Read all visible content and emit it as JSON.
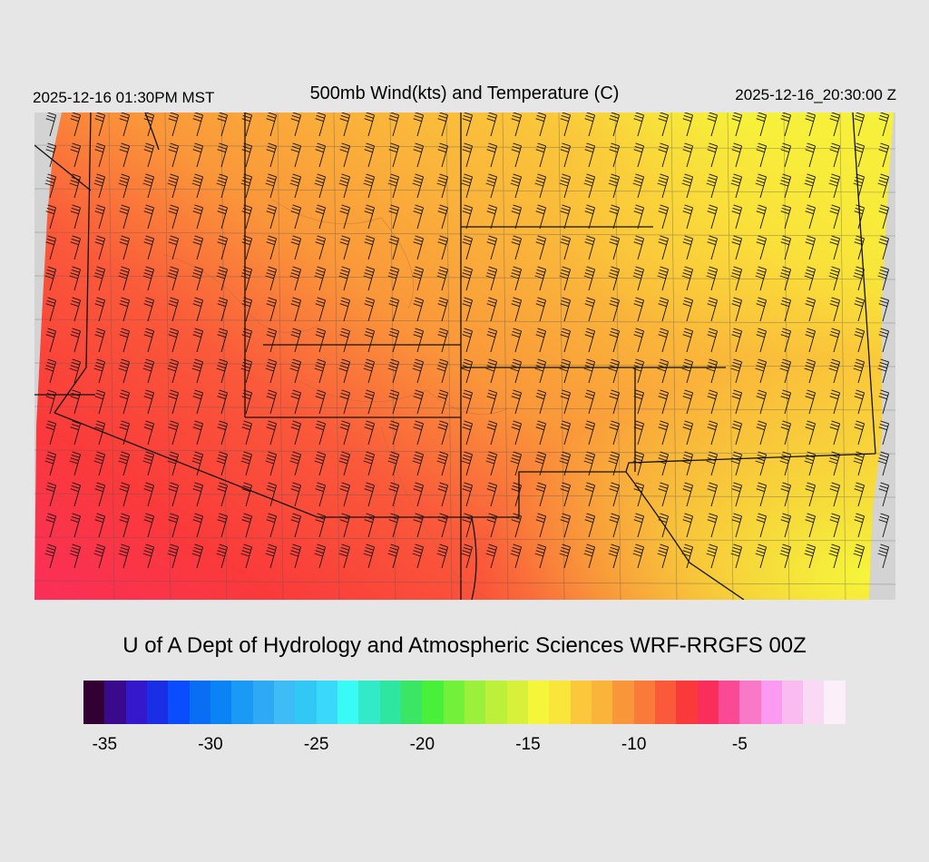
{
  "header": {
    "local_time": "2025-12-16 01:30PM MST",
    "title": "500mb Wind(kts) and Temperature (C)",
    "utc_time": "2025-12-16_20:30:00 Z"
  },
  "credit": "U of A Dept of Hydrology and Atmospheric Sciences WRF-RRGFS 00Z",
  "colorbar": {
    "colors": [
      "#330033",
      "#3a0a8c",
      "#3618cc",
      "#1a2ee6",
      "#0a4dff",
      "#0a6ef5",
      "#0a84f5",
      "#1a99f5",
      "#2eaaf5",
      "#3ebcf5",
      "#32c8f5",
      "#3ad9fa",
      "#3afaf5",
      "#32eac8",
      "#2ee6a0",
      "#3ae664",
      "#48f03a",
      "#72f03a",
      "#9af03a",
      "#bcf03a",
      "#d8f03a",
      "#f5f53a",
      "#fae63a",
      "#fac83a",
      "#fab43a",
      "#fa963a",
      "#fa7a3a",
      "#fa5a3a",
      "#fa3a3a",
      "#fa2e5a",
      "#fa4a96",
      "#fa78c8",
      "#fa9af0",
      "#fabcf0",
      "#fad9f5",
      "#fbf0fa"
    ],
    "labels": [
      "-35",
      "-30",
      "-25",
      "-20",
      "-15",
      "-10",
      "-5"
    ]
  },
  "map": {
    "temperature_field": "temperature-raster",
    "overlays": [
      "wind-barbs",
      "state-boundaries",
      "county-boundaries",
      "terrain-contours"
    ]
  }
}
